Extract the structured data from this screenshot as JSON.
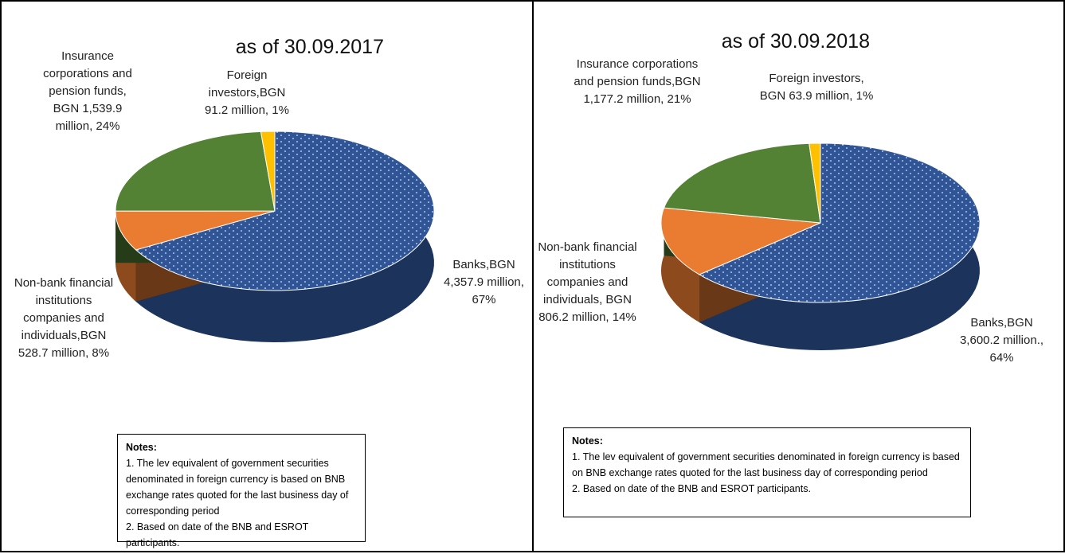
{
  "chart_data": [
    {
      "type": "pie3d",
      "title": "as of 30.09.2017",
      "values": [
        4357.9,
        528.7,
        1539.9,
        91.2
      ],
      "value_labels": [
        "Banks,BGN 4,357.9 million, 67%",
        "Non-bank financial institutions companies and individuals,BGN 528.7 million, 8%",
        "Insurance corporations and pension funds, BGN 1,539.9 million, 24%",
        "Foreign investors,BGN 91.2 million, 1%"
      ],
      "colors": [
        "#2f5597",
        "#e97c30",
        "#548235",
        "#ffc000"
      ],
      "textured": [
        true,
        false,
        false,
        false
      ],
      "notes": {
        "title": "Notes:",
        "items": [
          "1. The lev equivalent of government securities denominated in foreign currency is based on BNB exchange rates quoted for the last business  day of corresponding period",
          "2. Based on date of the BNB and ESROT participants."
        ]
      }
    },
    {
      "type": "pie3d",
      "title": "as of 30.09.2018",
      "values": [
        3600.2,
        806.2,
        1177.2,
        63.9
      ],
      "value_labels": [
        "Banks,BGN 3,600.2 million., 64%",
        "Non-bank financial institutions companies and individuals, BGN 806.2 million, 14%",
        "Insurance corporations and pension funds,BGN 1,177.2 million, 21%",
        "Foreign investors, BGN 63.9 million, 1%"
      ],
      "colors": [
        "#2f5597",
        "#e97c30",
        "#548235",
        "#ffc000"
      ],
      "textured": [
        true,
        false,
        false,
        false
      ],
      "notes": {
        "title": "Notes:",
        "items": [
          "1. The lev equivalent of government securities denominated in foreign currency is based on BNB exchange rates quoted for the last business  day of corresponding period",
          "2. Based on date of the BNB and ESROT participants."
        ]
      }
    }
  ]
}
